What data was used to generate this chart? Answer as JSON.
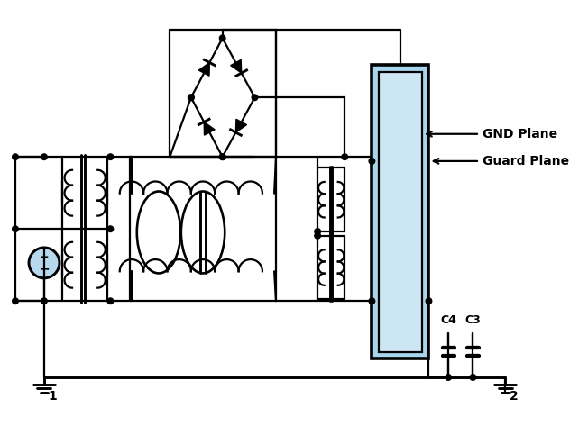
{
  "bg": "#ffffff",
  "lc": "#000000",
  "lw": 1.6,
  "plane_outer": "#a8d4ec",
  "plane_inner": "#cce6f4",
  "gnd_plane_label": "GND Plane",
  "guard_plane_label": "Guard Plane",
  "c3_label": "C3",
  "c4_label": "C4",
  "n1_label": "1",
  "n2_label": "2",
  "font_size": 9
}
